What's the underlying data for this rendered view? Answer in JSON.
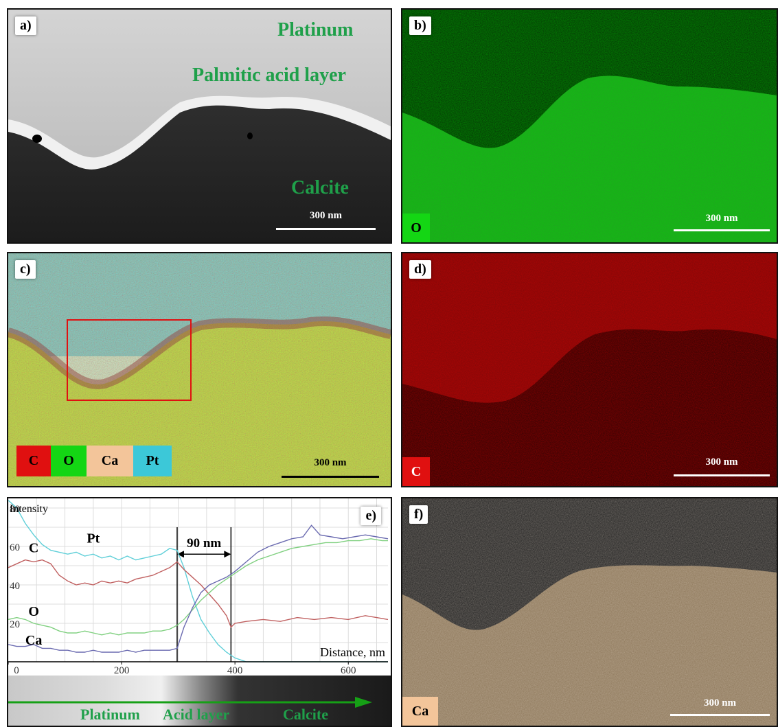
{
  "panels": {
    "a": {
      "label": "a)",
      "texts": [
        "Platinum",
        "Palmitic acid layer",
        "Calcite"
      ],
      "scalebar": "300 nm"
    },
    "b": {
      "label": "b)",
      "element": "O",
      "scalebar": "300 nm"
    },
    "c": {
      "label": "c)",
      "elements": [
        "C",
        "O",
        "Ca",
        "Pt"
      ],
      "scalebar": "300 nm"
    },
    "d": {
      "label": "d)",
      "element": "C",
      "scalebar": "300 nm"
    },
    "e": {
      "label": "e)",
      "strip_labels": [
        "Platinum",
        "Acid layer",
        "Calcite"
      ]
    },
    "f": {
      "label": "f)",
      "element": "Ca",
      "scalebar": "300 nm"
    }
  },
  "colors": {
    "C": "#e01010",
    "O": "#14d614",
    "Ca": "#f3c59a",
    "Pt": "#3cc8d8",
    "text_green": "#1fa04a"
  },
  "chart_data": {
    "type": "line",
    "ylabel": "Intensity",
    "xlabel": "Distance, nm",
    "xlim": [
      0,
      670
    ],
    "ylim": [
      0,
      85
    ],
    "xticks": [
      0,
      200,
      400,
      600
    ],
    "yticks": [
      20,
      40,
      60,
      80
    ],
    "annotation": "90 nm",
    "vlines": [
      298,
      393
    ],
    "grid": true,
    "series": [
      {
        "name": "Pt",
        "color": "#5fcfd8",
        "label_at": [
          150,
          62
        ],
        "x": [
          0,
          15,
          30,
          45,
          60,
          75,
          90,
          105,
          120,
          135,
          150,
          165,
          180,
          195,
          210,
          225,
          240,
          255,
          270,
          285,
          298,
          310,
          325,
          340,
          355,
          370,
          385,
          400,
          420,
          450,
          500,
          550,
          600,
          650,
          670
        ],
        "y": [
          84,
          80,
          72,
          66,
          61,
          58,
          57,
          56,
          57,
          55,
          56,
          54,
          55,
          53,
          55,
          53,
          54,
          55,
          56,
          59,
          58,
          49,
          34,
          22,
          15,
          9,
          5,
          2,
          0,
          0,
          0,
          0,
          0,
          0,
          0
        ]
      },
      {
        "name": "C",
        "color": "#c06060",
        "label_at": [
          45,
          57
        ],
        "x": [
          0,
          15,
          30,
          45,
          60,
          75,
          90,
          105,
          120,
          135,
          150,
          165,
          180,
          195,
          210,
          225,
          240,
          255,
          270,
          285,
          298,
          310,
          325,
          340,
          355,
          370,
          385,
          393,
          400,
          420,
          450,
          480,
          510,
          540,
          570,
          600,
          630,
          650,
          670
        ],
        "y": [
          49,
          51,
          53,
          52,
          53,
          51,
          45,
          42,
          40,
          41,
          40,
          42,
          41,
          42,
          41,
          43,
          44,
          45,
          47,
          49,
          52,
          48,
          44,
          40,
          35,
          30,
          24,
          18,
          20,
          21,
          22,
          21,
          23,
          22,
          23,
          22,
          24,
          23,
          22
        ]
      },
      {
        "name": "O",
        "color": "#80d080",
        "label_at": [
          45,
          24
        ],
        "x": [
          0,
          15,
          30,
          45,
          60,
          75,
          90,
          105,
          120,
          135,
          150,
          165,
          180,
          195,
          210,
          225,
          240,
          255,
          270,
          285,
          298,
          310,
          325,
          340,
          355,
          370,
          385,
          400,
          420,
          440,
          460,
          480,
          500,
          520,
          540,
          560,
          580,
          600,
          620,
          640,
          660,
          670
        ],
        "y": [
          22,
          23,
          22,
          20,
          19,
          18,
          16,
          15,
          15,
          16,
          15,
          14,
          15,
          14,
          15,
          15,
          15,
          16,
          16,
          17,
          19,
          22,
          27,
          32,
          36,
          40,
          43,
          46,
          50,
          53,
          55,
          57,
          59,
          60,
          61,
          62,
          62,
          63,
          63,
          64,
          63,
          63
        ]
      },
      {
        "name": "Ca",
        "color": "#6a6ab0",
        "label_at": [
          45,
          9
        ],
        "x": [
          0,
          15,
          30,
          45,
          60,
          75,
          90,
          105,
          120,
          135,
          150,
          165,
          180,
          195,
          210,
          225,
          240,
          255,
          270,
          285,
          298,
          310,
          325,
          340,
          355,
          370,
          385,
          400,
          420,
          440,
          460,
          480,
          500,
          520,
          535,
          550,
          570,
          590,
          610,
          630,
          650,
          670
        ],
        "y": [
          9,
          8,
          8,
          9,
          7,
          7,
          6,
          6,
          5,
          5,
          6,
          5,
          5,
          5,
          6,
          5,
          6,
          6,
          6,
          6,
          7,
          18,
          28,
          36,
          40,
          42,
          44,
          47,
          52,
          57,
          60,
          62,
          64,
          65,
          71,
          66,
          65,
          64,
          65,
          66,
          65,
          64
        ]
      }
    ]
  }
}
